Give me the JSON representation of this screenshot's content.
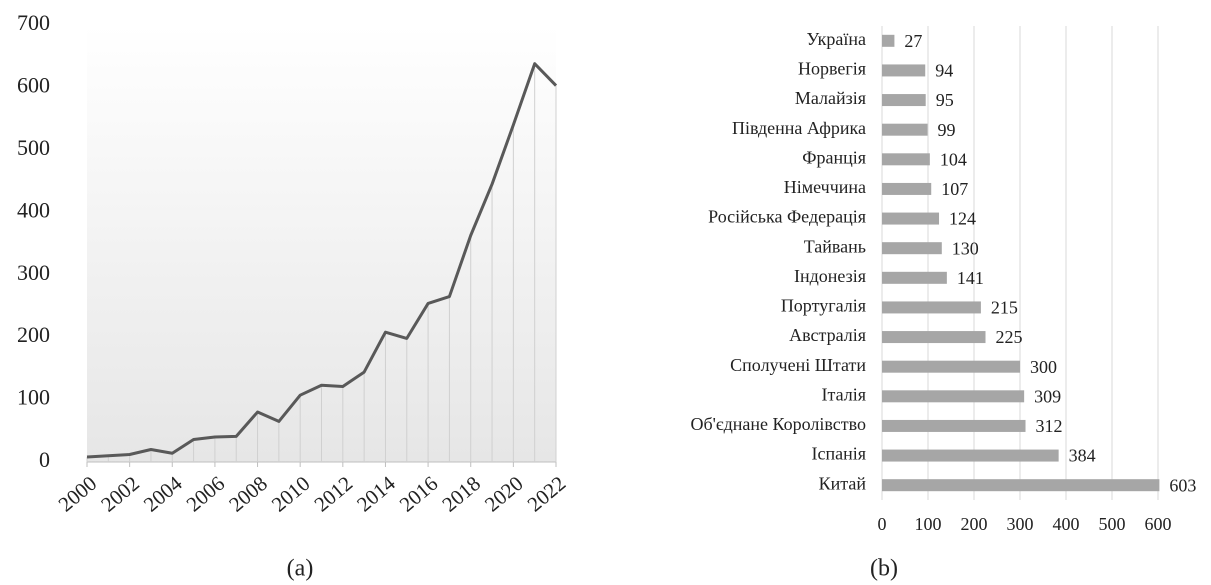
{
  "chart_data": [
    {
      "type": "line",
      "caption": "(a)",
      "x": [
        2000,
        2001,
        2002,
        2003,
        2004,
        2005,
        2006,
        2007,
        2008,
        2009,
        2010,
        2011,
        2012,
        2013,
        2014,
        2015,
        2016,
        2017,
        2018,
        2019,
        2020,
        2021,
        2022
      ],
      "values": [
        8,
        10,
        12,
        20,
        14,
        36,
        40,
        41,
        80,
        65,
        107,
        123,
        121,
        144,
        208,
        198,
        254,
        265,
        363,
        445,
        540,
        638,
        603
      ],
      "color": "#595959",
      "xlim": [
        2000,
        2022
      ],
      "xticks": [
        2000,
        2002,
        2004,
        2006,
        2008,
        2010,
        2012,
        2014,
        2016,
        2018,
        2020,
        2022
      ],
      "ylim": [
        0,
        700
      ],
      "yticks": [
        0,
        100,
        200,
        300,
        400,
        500,
        600,
        700
      ]
    },
    {
      "type": "hbar",
      "caption": "(b)",
      "categories": [
        "Україна",
        "Норвегія",
        "Малайзія",
        "Південна Африка",
        "Франція",
        "Німеччина",
        "Російська Федерація",
        "Тайвань",
        "Індонезія",
        "Португалія",
        "Австралія",
        "Сполучені Штати",
        "Італія",
        "Об'єднане Королівство",
        "Іспанія",
        "Китай"
      ],
      "values": [
        27,
        94,
        95,
        99,
        104,
        107,
        124,
        130,
        141,
        215,
        225,
        300,
        309,
        312,
        384,
        603
      ],
      "color": "#a6a6a6",
      "xlim": [
        0,
        600
      ],
      "xticks": [
        0,
        100,
        200,
        300,
        400,
        500,
        600
      ],
      "grid": true
    }
  ]
}
